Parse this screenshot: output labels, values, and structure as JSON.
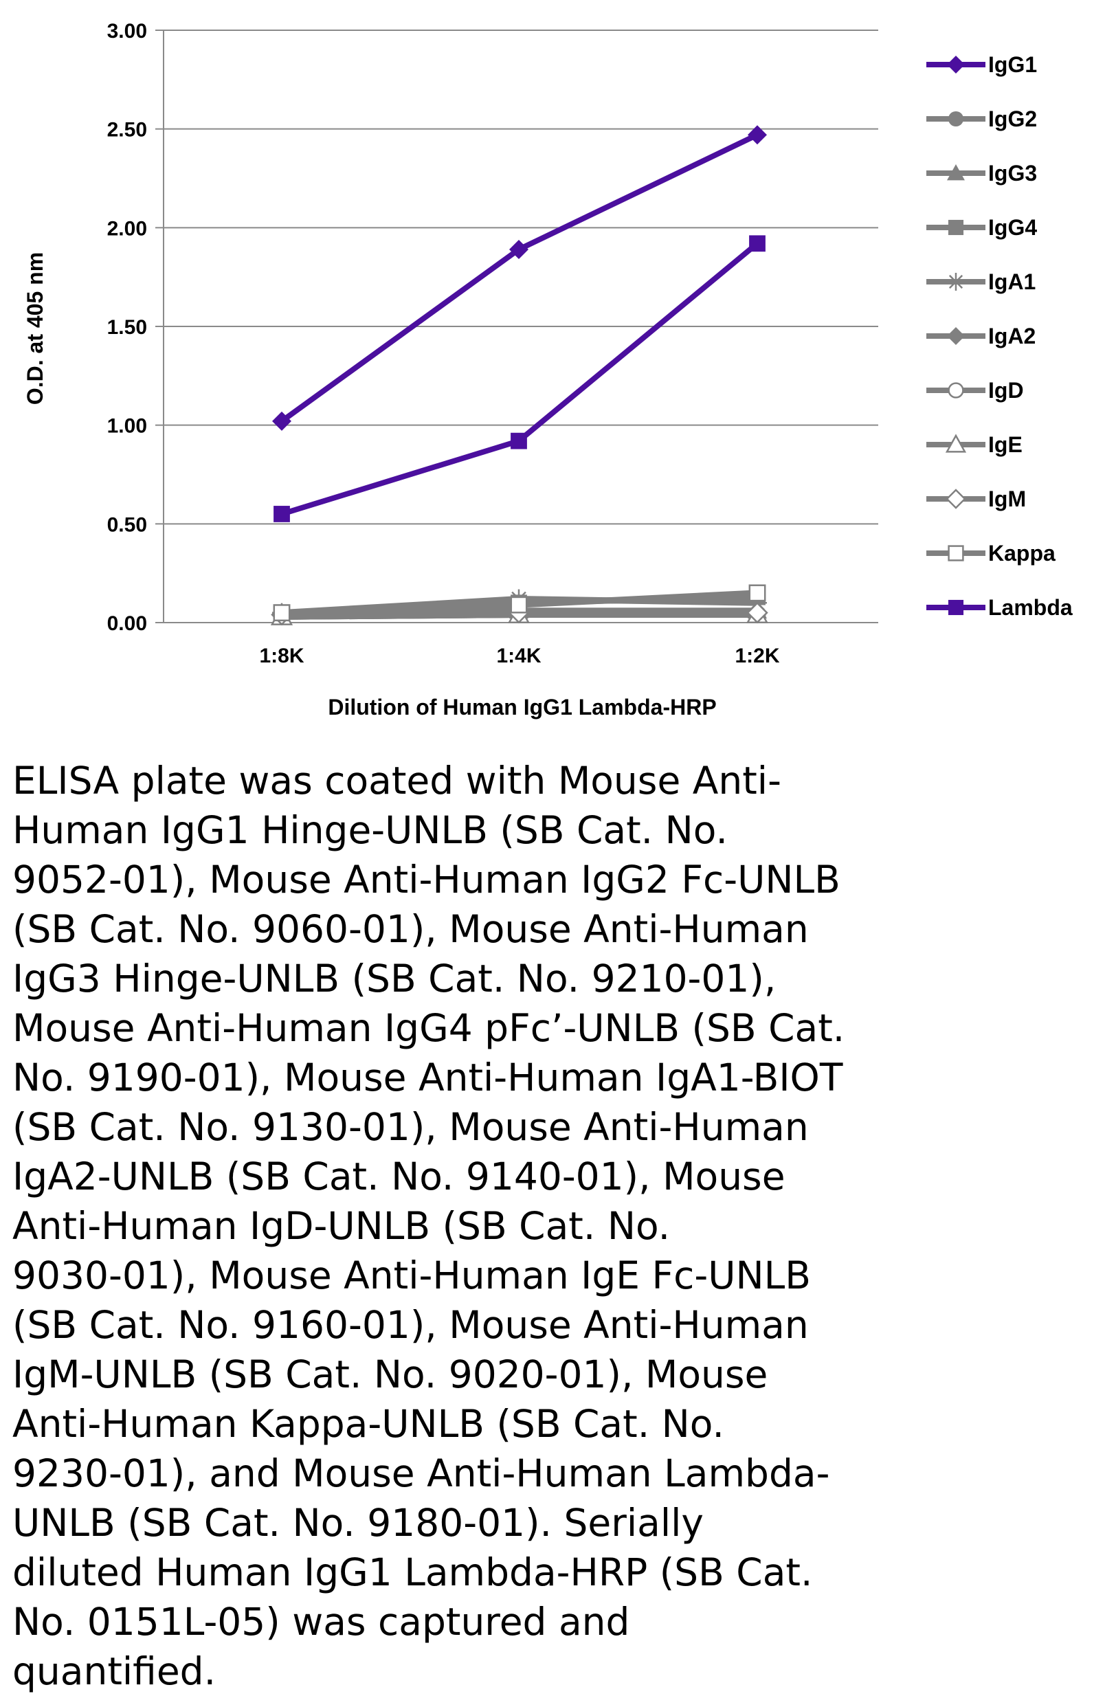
{
  "chart_data": {
    "type": "line",
    "title": "",
    "xlabel": "Dilution of Human IgG1 Lambda-HRP",
    "ylabel": "O.D. at 405 nm",
    "categories": [
      "1:8K",
      "1:4K",
      "1:2K"
    ],
    "ylim": [
      0,
      3.0
    ],
    "yticks": [
      "0.00",
      "0.50",
      "1.00",
      "1.50",
      "2.00",
      "2.50",
      "3.00"
    ],
    "grid": true,
    "legend_position": "right",
    "series": [
      {
        "name": "IgG1",
        "values": [
          1.02,
          1.89,
          2.47
        ],
        "color": "#4b0f9e",
        "marker": "diamond"
      },
      {
        "name": "IgG2",
        "values": [
          0.03,
          0.04,
          0.04
        ],
        "color": "#808080",
        "marker": "circle"
      },
      {
        "name": "IgG3",
        "values": [
          0.04,
          0.06,
          0.06
        ],
        "color": "#808080",
        "marker": "triangle"
      },
      {
        "name": "IgG4",
        "values": [
          0.05,
          0.1,
          0.13
        ],
        "color": "#808080",
        "marker": "square"
      },
      {
        "name": "IgA1",
        "values": [
          0.05,
          0.12,
          0.1
        ],
        "color": "#808080",
        "marker": "star"
      },
      {
        "name": "IgA2",
        "values": [
          0.04,
          0.05,
          0.05
        ],
        "color": "#808080",
        "marker": "diamond"
      },
      {
        "name": "IgD",
        "values": [
          0.03,
          0.04,
          0.04
        ],
        "color": "#808080",
        "marker": "circle-open"
      },
      {
        "name": "IgE",
        "values": [
          0.03,
          0.04,
          0.04
        ],
        "color": "#808080",
        "marker": "triangle-open"
      },
      {
        "name": "IgM",
        "values": [
          0.04,
          0.05,
          0.05
        ],
        "color": "#808080",
        "marker": "diamond-open"
      },
      {
        "name": "Kappa",
        "values": [
          0.05,
          0.09,
          0.15
        ],
        "color": "#808080",
        "marker": "square-open"
      },
      {
        "name": "Lambda",
        "values": [
          0.55,
          0.92,
          1.92
        ],
        "color": "#4b0f9e",
        "marker": "square"
      }
    ]
  },
  "caption_lines": [
    "ELISA plate was coated with Mouse Anti-",
    "Human IgG1 Hinge-UNLB (SB Cat. No.",
    "9052-01), Mouse Anti-Human IgG2 Fc-UNLB",
    "(SB Cat. No. 9060-01), Mouse Anti-Human",
    "IgG3 Hinge-UNLB (SB Cat. No. 9210-01),",
    "Mouse Anti-Human IgG4 pFc’-UNLB (SB Cat.",
    "No. 9190-01), Mouse Anti-Human IgA1-BIOT",
    "(SB Cat. No. 9130-01), Mouse Anti-Human",
    "IgA2-UNLB (SB Cat. No. 9140-01),  Mouse",
    "Anti-Human IgD-UNLB (SB Cat. No.",
    "9030-01), Mouse Anti-Human IgE Fc-UNLB",
    "(SB Cat. No. 9160-01), Mouse Anti-Human",
    "IgM-UNLB (SB Cat. No. 9020-01), Mouse",
    "Anti-Human Kappa-UNLB (SB Cat. No.",
    "9230-01), and Mouse Anti-Human Lambda-",
    "UNLB (SB Cat. No. 9180-01).  Serially",
    "diluted Human IgG1 Lambda-HRP (SB Cat.",
    "No. 0151L-05) was captured and",
    "quantified."
  ]
}
